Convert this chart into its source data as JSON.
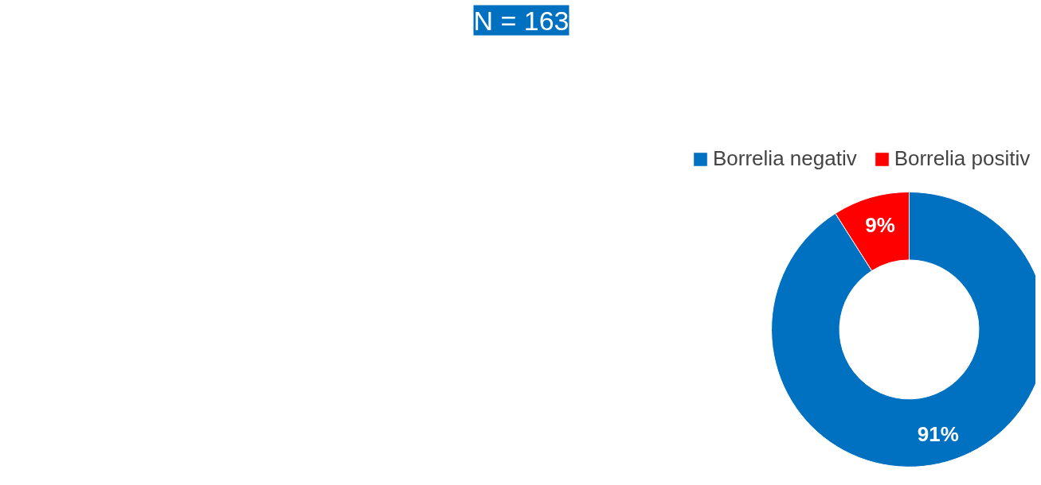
{
  "chart_data": {
    "type": "donut",
    "title": "N = 163",
    "categories": [
      "Borrelia negativ",
      "Borrelia positiv"
    ],
    "values": [
      91,
      9
    ],
    "colors": [
      "#0070c0",
      "#ff0000"
    ],
    "value_labels": [
      "91%",
      "9%"
    ],
    "legend": "top"
  }
}
